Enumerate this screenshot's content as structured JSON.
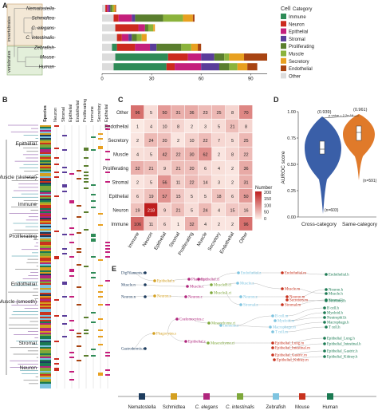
{
  "panels": {
    "a": "A",
    "b": "B",
    "c": "C",
    "d": "D",
    "e": "E"
  },
  "colors": {
    "Immune": "#2e8b57",
    "Neuron": "#cc2a1e",
    "Epithelial": "#c41f7c",
    "Stromal": "#5a3d9a",
    "Proliferating": "#5a7e2e",
    "Muscle": "#8bb33c",
    "Secretory": "#e8a020",
    "Endothelial": "#a84412",
    "Other": "#dcdcdc",
    "Nematostella": "#1d3c5e",
    "Schmidtea": "#d4a020",
    "C. elegans": "#b0267d",
    "C. intestinalis": "#7ea83a",
    "Zebrafish": "#7ec4e0",
    "Mouse": "#c8321e",
    "Human": "#1a7a52"
  },
  "panel_a": {
    "group_labels": {
      "invertebrates": "invertebrates",
      "vertebrates": "vertebrates"
    },
    "species": [
      "Nematostella",
      "Schmidtea",
      "C. elegans",
      "C. intestinalis",
      "Zebrafish",
      "Mouse",
      "Human"
    ],
    "x_ticks": [
      "0",
      "30",
      "60",
      "90"
    ],
    "x_tick_values": [
      0,
      30,
      60,
      90
    ],
    "x_max": 100,
    "legend_title": "Cell",
    "legend_subtitle": "Category",
    "categories": [
      "Immune",
      "Neuron",
      "Epithelial",
      "Stromal",
      "Proliferating",
      "Muscle",
      "Secretory",
      "Endothelial",
      "Other"
    ],
    "bars": [
      {
        "species": "Nematostella",
        "segments": [
          {
            "c": "Other",
            "v": 2
          },
          {
            "c": "Neuron",
            "v": 1
          },
          {
            "c": "Epithelial",
            "v": 1
          },
          {
            "c": "Stromal",
            "v": 1
          },
          {
            "c": "Proliferating",
            "v": 1
          },
          {
            "c": "Muscle",
            "v": 1
          },
          {
            "c": "Secretory",
            "v": 1
          },
          {
            "c": "Endothelial",
            "v": 0.5
          }
        ]
      },
      {
        "species": "Schmidtea",
        "segments": [
          {
            "c": "Other",
            "v": 7
          },
          {
            "c": "Neuron",
            "v": 3
          },
          {
            "c": "Epithelial",
            "v": 8
          },
          {
            "c": "Stromal",
            "v": 2
          },
          {
            "c": "Proliferating",
            "v": 17
          },
          {
            "c": "Muscle",
            "v": 12
          },
          {
            "c": "Secretory",
            "v": 6
          },
          {
            "c": "Endothelial",
            "v": 1
          }
        ]
      },
      {
        "species": "C. elegans",
        "segments": [
          {
            "c": "Other",
            "v": 8
          },
          {
            "c": "Neuron",
            "v": 14
          },
          {
            "c": "Epithelial",
            "v": 4
          },
          {
            "c": "Proliferating",
            "v": 2
          },
          {
            "c": "Muscle",
            "v": 3
          },
          {
            "c": "Secretory",
            "v": 1
          }
        ]
      },
      {
        "species": "C. intestinalis",
        "segments": [
          {
            "c": "Other",
            "v": 9
          },
          {
            "c": "Neuron",
            "v": 3
          },
          {
            "c": "Epithelial",
            "v": 4
          },
          {
            "c": "Stromal",
            "v": 2
          },
          {
            "c": "Proliferating",
            "v": 3
          },
          {
            "c": "Muscle",
            "v": 3
          },
          {
            "c": "Secretory",
            "v": 3
          }
        ]
      },
      {
        "species": "Zebrafish",
        "segments": [
          {
            "c": "Other",
            "v": 6
          },
          {
            "c": "Immune",
            "v": 3
          },
          {
            "c": "Neuron",
            "v": 11
          },
          {
            "c": "Epithelial",
            "v": 9
          },
          {
            "c": "Stromal",
            "v": 4
          },
          {
            "c": "Proliferating",
            "v": 15
          },
          {
            "c": "Muscle",
            "v": 6
          },
          {
            "c": "Secretory",
            "v": 4
          },
          {
            "c": "Endothelial",
            "v": 2
          }
        ]
      },
      {
        "species": "Mouse",
        "segments": [
          {
            "c": "Other",
            "v": 8
          },
          {
            "c": "Immune",
            "v": 32
          },
          {
            "c": "Neuron",
            "v": 12
          },
          {
            "c": "Epithelial",
            "v": 8
          },
          {
            "c": "Stromal",
            "v": 8
          },
          {
            "c": "Proliferating",
            "v": 6
          },
          {
            "c": "Muscle",
            "v": 3
          },
          {
            "c": "Secretory",
            "v": 9
          },
          {
            "c": "Endothelial",
            "v": 14
          }
        ]
      },
      {
        "species": "Human",
        "segments": [
          {
            "c": "Other",
            "v": 7
          },
          {
            "c": "Immune",
            "v": 32
          },
          {
            "c": "Neuron",
            "v": 5
          },
          {
            "c": "Epithelial",
            "v": 16
          },
          {
            "c": "Stromal",
            "v": 11
          },
          {
            "c": "Proliferating",
            "v": 6
          },
          {
            "c": "Muscle",
            "v": 5
          },
          {
            "c": "Secretory",
            "v": 6
          },
          {
            "c": "Endothelial",
            "v": 6
          }
        ]
      }
    ]
  },
  "panel_b": {
    "col_labels": [
      "Species",
      "Neuron",
      "Stromal",
      "Epithelial",
      "Endothelial",
      "Proliferating",
      "Immune",
      "Secretory",
      "Epithelial"
    ],
    "row_labels": [
      "Epithelial",
      "Muscle (skeletal)",
      "Immune",
      "Proliferating",
      "Endothelial",
      "Muscle (smooth)",
      "Stromal",
      "Neuron"
    ]
  },
  "panel_c": {
    "rows": [
      "Other",
      "Endothelial",
      "Secretory",
      "Muscle",
      "Proliferating",
      "Stromal",
      "Epithelial",
      "Neuron",
      "Immune"
    ],
    "cols": [
      "Immune",
      "Neuron",
      "Epithelial",
      "Stromal",
      "Proliferating",
      "Muscle",
      "Secretory",
      "Endothelial",
      "Other"
    ],
    "values": [
      [
        96,
        5,
        50,
        31,
        36,
        23,
        25,
        8,
        70
      ],
      [
        1,
        4,
        10,
        8,
        2,
        3,
        5,
        21,
        8
      ],
      [
        2,
        24,
        20,
        2,
        10,
        22,
        7,
        5,
        25
      ],
      [
        4,
        5,
        42,
        22,
        30,
        62,
        2,
        8,
        22
      ],
      [
        32,
        21,
        9,
        21,
        20,
        6,
        4,
        2,
        36
      ],
      [
        2,
        5,
        56,
        11,
        22,
        14,
        3,
        2,
        31
      ],
      [
        6,
        19,
        57,
        15,
        5,
        5,
        18,
        6,
        50
      ],
      [
        19,
        218,
        9,
        21,
        5,
        24,
        4,
        15,
        16
      ],
      [
        106,
        11,
        6,
        1,
        32,
        4,
        2,
        2,
        96
      ]
    ],
    "legend_title": "Number",
    "legend_ticks": [
      "200",
      "150",
      "100",
      "50",
      "0"
    ],
    "vmax": 218
  },
  "panel_d": {
    "ylabel": "AUROC score",
    "y_ticks": [
      "1.00",
      "0.75",
      "0.50",
      "0.25",
      "0.00"
    ],
    "categories": [
      "Cross-category",
      "Same-category"
    ],
    "medians_text": [
      "(0.939)",
      "(0.961)"
    ],
    "n_text": [
      "(n=603)",
      "(n=591)"
    ],
    "pvalue_text": "p-value = 2.2e-16"
  },
  "panel_e": {
    "node_labels": [
      {
        "t": "DigFilaments.n",
        "col": "Nematostella"
      },
      {
        "t": "Neuron.n",
        "col": "Nematostella"
      },
      {
        "t": "Muscle.n",
        "col": "Nematostella"
      },
      {
        "t": "Gastrodermis.n",
        "col": "Nematostella"
      },
      {
        "t": "Epithelial.s",
        "col": "Schmidtea"
      },
      {
        "t": "Neuron.s",
        "col": "Schmidtea"
      },
      {
        "t": "Phagocytes.s",
        "col": "Schmidtea"
      },
      {
        "t": "Pharynx.c",
        "col": "C. elegans"
      },
      {
        "t": "Epithelial.c",
        "col": "C. elegans"
      },
      {
        "t": "Neuron.c",
        "col": "C. elegans"
      },
      {
        "t": "Muscle.c",
        "col": "C. elegans"
      },
      {
        "t": "Coelomocytes.c",
        "col": "C. elegans"
      },
      {
        "t": "Epithelial.ci",
        "col": "C. elegans"
      },
      {
        "t": "MuscleB.ci",
        "col": "C. intestinalis"
      },
      {
        "t": "MuscleA.ci",
        "col": "C. intestinalis"
      },
      {
        "t": "Mesenchyme.ci",
        "col": "C. intestinalis"
      },
      {
        "t": "Mesenchyme.ci",
        "col": "C. intestinalis"
      },
      {
        "t": "Endothelial.z",
        "col": "Zebrafish"
      },
      {
        "t": "Muscle.z",
        "col": "Zebrafish"
      },
      {
        "t": "Stromal.z",
        "col": "Zebrafish"
      },
      {
        "t": "Neuron.z",
        "col": "Zebrafish"
      },
      {
        "t": "Immune.z",
        "col": "Zebrafish"
      },
      {
        "t": "Endothelial.m",
        "col": "Mouse"
      },
      {
        "t": "Muscle.m",
        "col": "Mouse"
      },
      {
        "t": "Stromal.m",
        "col": "Mouse"
      },
      {
        "t": "Neuron.m",
        "col": "Mouse"
      },
      {
        "t": "Secretory.m",
        "col": "Mouse"
      },
      {
        "t": "B cell.m",
        "col": "Zebrafish"
      },
      {
        "t": "Myeloid.m",
        "col": "Zebrafish"
      },
      {
        "t": "Macrophage.m",
        "col": "Zebrafish"
      },
      {
        "t": "T cell.m",
        "col": "Zebrafish"
      },
      {
        "t": "Epithelial_Lung.m",
        "col": "Mouse"
      },
      {
        "t": "Epithelial_Intestinal.m",
        "col": "Mouse"
      },
      {
        "t": "Epithelial_Gastric.m",
        "col": "Mouse"
      },
      {
        "t": "Epithelial_Kidney.m",
        "col": "Mouse"
      },
      {
        "t": "Endothelial.h",
        "col": "Human"
      },
      {
        "t": "Muscle.h",
        "col": "Human"
      },
      {
        "t": "Stromal.h",
        "col": "Human"
      },
      {
        "t": "Neuron.h",
        "col": "Human"
      },
      {
        "t": "Secretory.h",
        "col": "Human"
      },
      {
        "t": "B cell.h",
        "col": "Human"
      },
      {
        "t": "Myeloid.h",
        "col": "Human"
      },
      {
        "t": "Neutrophil.h",
        "col": "Human"
      },
      {
        "t": "Macrophage.h",
        "col": "Human"
      },
      {
        "t": "T cell.h",
        "col": "Human"
      },
      {
        "t": "Epithelial_Lung.h",
        "col": "Human"
      },
      {
        "t": "Epithelial_Intestinal.h",
        "col": "Human"
      },
      {
        "t": "Epithelial_Gastric.h",
        "col": "Human"
      },
      {
        "t": "Epithelial_Kidney.h",
        "col": "Human"
      }
    ],
    "legend": [
      "Nematostella",
      "Schmidtea",
      "C. elegans",
      "C. intestinalis",
      "Zebrafish",
      "Mouse",
      "Human"
    ]
  }
}
